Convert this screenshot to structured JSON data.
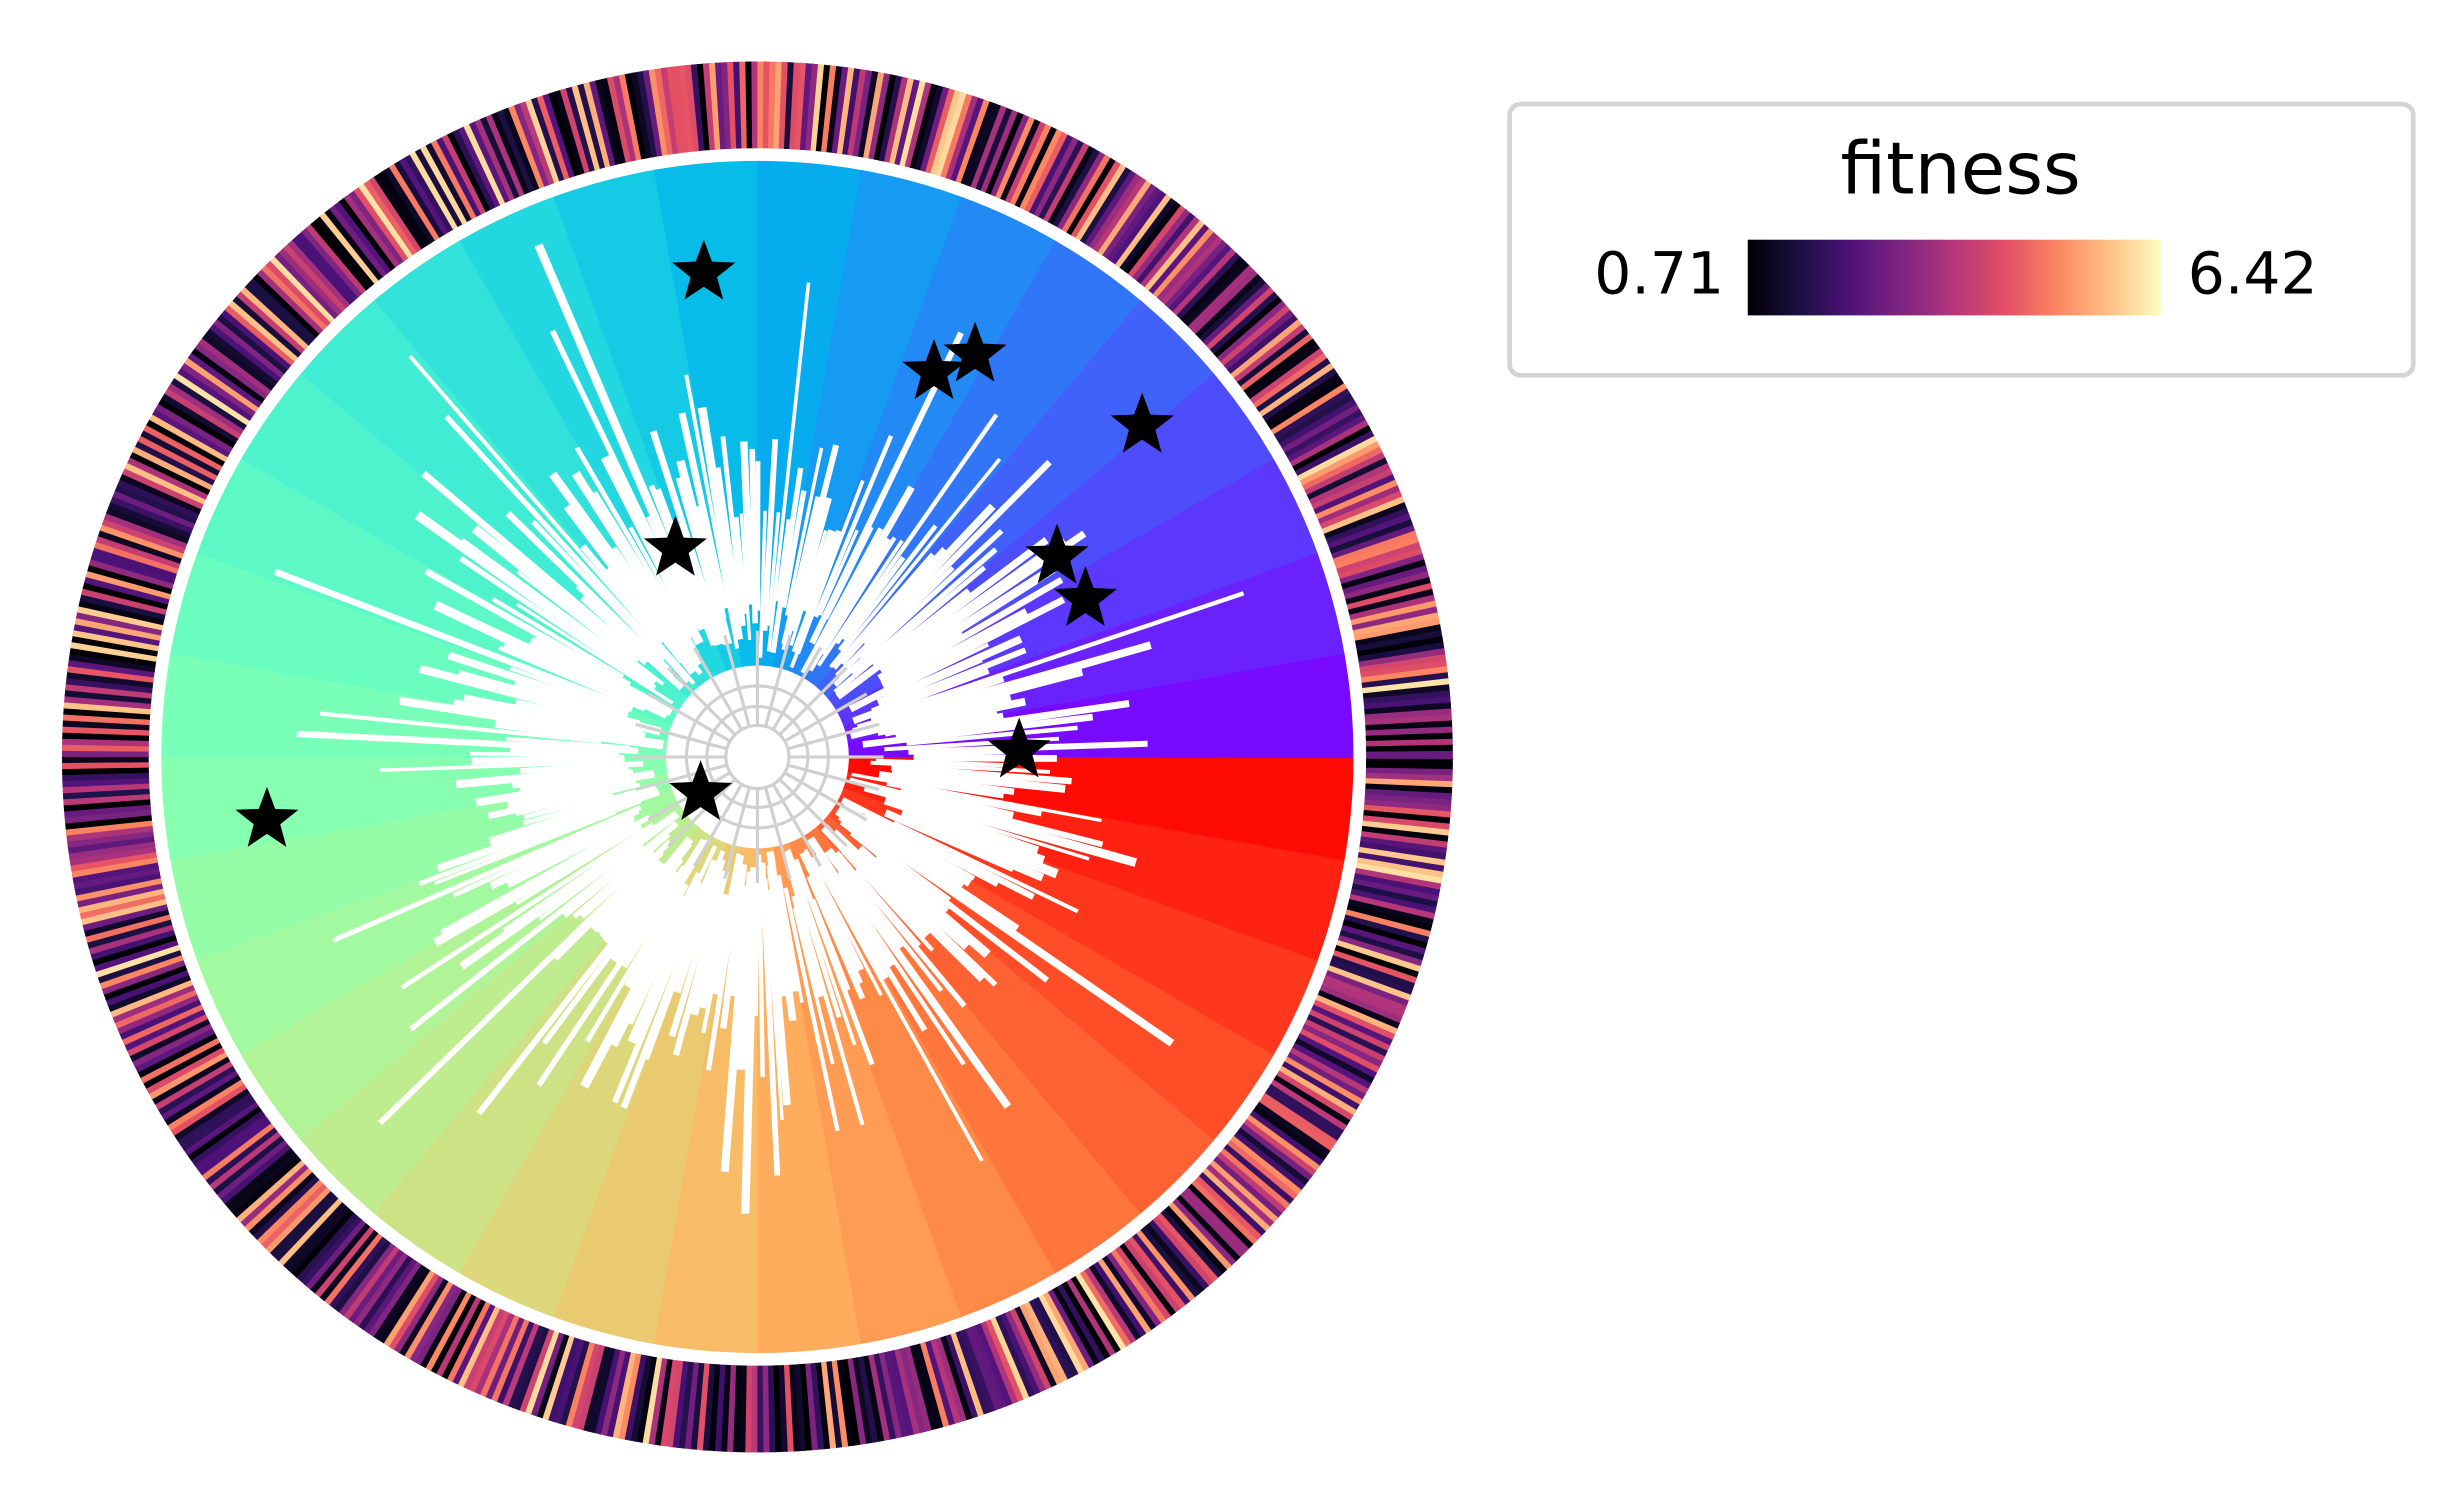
{
  "legend": {
    "title": "fitness",
    "min": 0.71,
    "max": 6.42
  }
}
